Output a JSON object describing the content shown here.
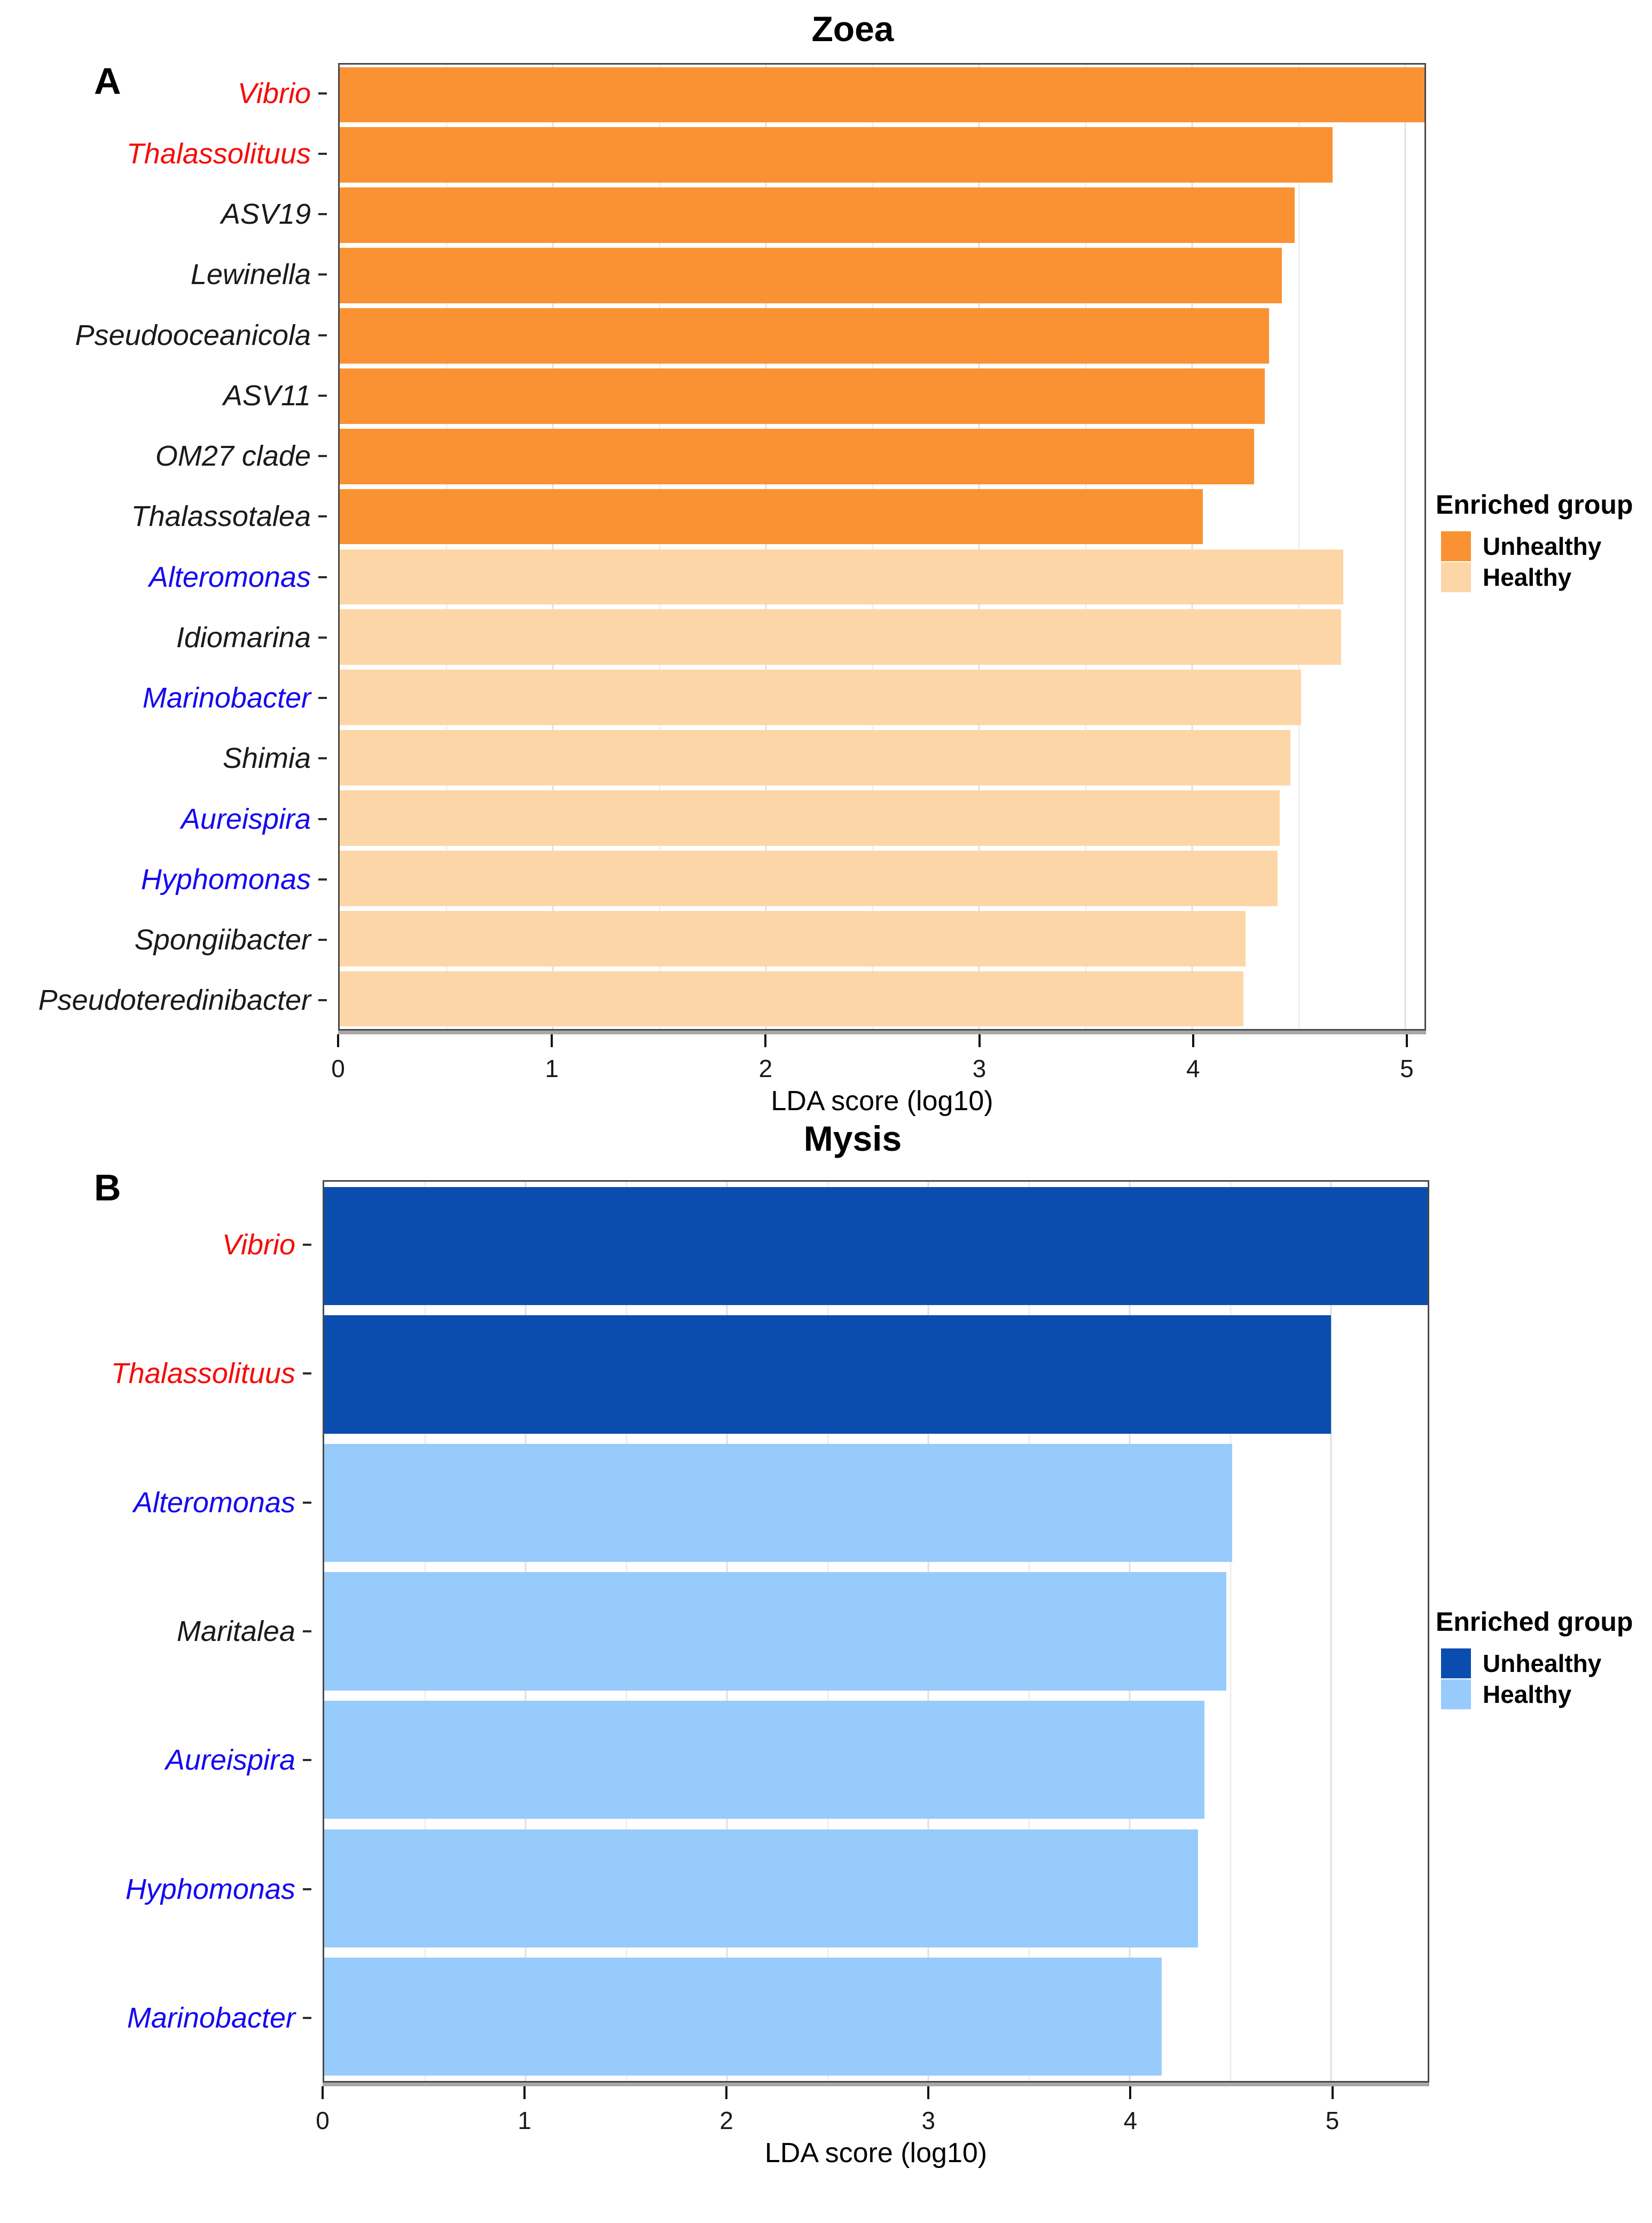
{
  "figure": {
    "background": "#ffffff",
    "text_colors": {
      "red_taxa": "#f50d0a",
      "blue_taxa": "#1508f0",
      "black_taxa": "#1a1a1a"
    }
  },
  "chart_data": [
    {
      "type": "bar",
      "orientation": "horizontal",
      "panel_letter": "A",
      "title": "Zoea",
      "xlabel": "LDA score (log10)",
      "x_ticks": [
        0,
        1,
        2,
        3,
        4,
        5
      ],
      "xlim": [
        0,
        5.09
      ],
      "grid": {
        "vertical_interval": 0.5
      },
      "categories": [
        "Vibrio",
        "Thalassolituus",
        "ASV19",
        "Lewinella",
        "Pseudooceanicola",
        "ASV11",
        "OM27 clade",
        "Thalassotalea",
        "Alteromonas",
        "Idiomarina",
        "Marinobacter",
        "Shimia",
        "Aureispira",
        "Hyphomonas",
        "Spongiibacter",
        "Pseudoteredinibacter"
      ],
      "values": [
        5.1,
        4.66,
        4.48,
        4.42,
        4.36,
        4.34,
        4.29,
        4.05,
        4.71,
        4.7,
        4.51,
        4.46,
        4.41,
        4.4,
        4.25,
        4.24
      ],
      "groups": [
        "Unhealthy",
        "Unhealthy",
        "Unhealthy",
        "Unhealthy",
        "Unhealthy",
        "Unhealthy",
        "Unhealthy",
        "Unhealthy",
        "Healthy",
        "Healthy",
        "Healthy",
        "Healthy",
        "Healthy",
        "Healthy",
        "Healthy",
        "Healthy"
      ],
      "category_label_colors": [
        "#f50d0a",
        "#f50d0a",
        "#1a1a1a",
        "#1a1a1a",
        "#1a1a1a",
        "#1a1a1a",
        "#1a1a1a",
        "#1a1a1a",
        "#1508f0",
        "#1a1a1a",
        "#1508f0",
        "#1a1a1a",
        "#1508f0",
        "#1508f0",
        "#1a1a1a",
        "#1a1a1a"
      ],
      "bar_colors": {
        "Unhealthy": "#fa9233",
        "Healthy": "#fdd6a8"
      },
      "legend": {
        "title": "Enriched group",
        "position": "right",
        "entries": [
          {
            "label": "Unhealthy",
            "color": "#fa9233"
          },
          {
            "label": "Healthy",
            "color": "#fdd6a8"
          }
        ]
      }
    },
    {
      "type": "bar",
      "orientation": "horizontal",
      "panel_letter": "B",
      "title": "Mysis",
      "xlabel": "LDA score (log10)",
      "x_ticks": [
        0,
        1,
        2,
        3,
        4,
        5
      ],
      "xlim": [
        0,
        5.48
      ],
      "grid": {
        "vertical_interval": 0.5
      },
      "categories": [
        "Vibrio",
        "Thalassolituus",
        "Alteromonas",
        "Maritalea",
        "Aureispira",
        "Hyphomonas",
        "Marinobacter"
      ],
      "values": [
        5.5,
        5.0,
        4.51,
        4.48,
        4.37,
        4.34,
        4.16
      ],
      "groups": [
        "Unhealthy",
        "Unhealthy",
        "Healthy",
        "Healthy",
        "Healthy",
        "Healthy",
        "Healthy"
      ],
      "category_label_colors": [
        "#f50d0a",
        "#f50d0a",
        "#1508f0",
        "#1a1a1a",
        "#1508f0",
        "#1508f0",
        "#1508f0"
      ],
      "bar_colors": {
        "Unhealthy": "#0b4daf",
        "Healthy": "#97cbfb"
      },
      "legend": {
        "title": "Enriched group",
        "position": "right",
        "entries": [
          {
            "label": "Unhealthy",
            "color": "#0b4daf"
          },
          {
            "label": "Healthy",
            "color": "#97cbfb"
          }
        ]
      }
    }
  ]
}
